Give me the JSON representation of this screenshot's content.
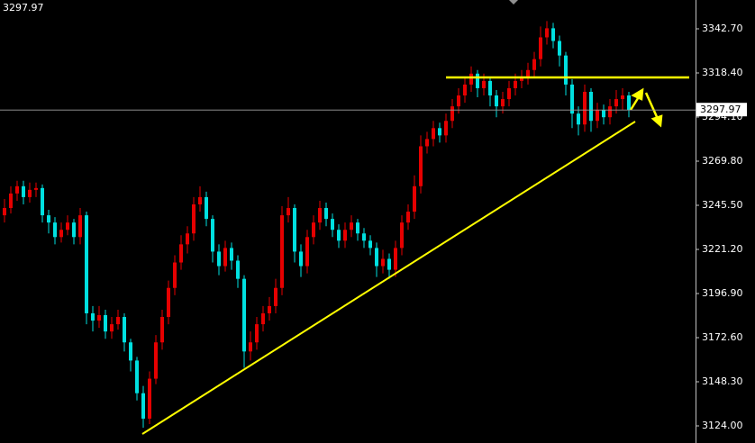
{
  "chart_data": {
    "type": "candlestick",
    "last_price": 3297.97,
    "up_color": "#e60000",
    "down_color": "#00e0e0",
    "ylim": [
      3114.58,
      3358.57
    ],
    "yticks": [
      {
        "value": 3124,
        "label": "3124.00"
      },
      {
        "value": 3148.3,
        "label": "3148.30"
      },
      {
        "value": 3172.6,
        "label": "3172.60"
      },
      {
        "value": 3196.9,
        "label": "3196.90"
      },
      {
        "value": 3221.2,
        "label": "3221.20"
      },
      {
        "value": 3245.5,
        "label": "3245.50"
      },
      {
        "value": 3269.8,
        "label": "3269.80"
      },
      {
        "value": 3294.1,
        "label": "3294.10"
      },
      {
        "value": 3318.4,
        "label": "3318.40"
      },
      {
        "value": 3342.7,
        "label": "3342.70"
      }
    ],
    "open": [
      3240,
      3244,
      3252,
      3256,
      3250,
      3254,
      3255,
      3240,
      3236,
      3228,
      3232,
      3236,
      3228,
      3240,
      3186,
      3182,
      3185,
      3176,
      3180,
      3184,
      3170,
      3160,
      3142,
      3128,
      3150,
      3170,
      3184,
      3200,
      3214,
      3224,
      3230,
      3246,
      3250,
      3238,
      3220,
      3212,
      3222,
      3215,
      3205,
      3165,
      3170,
      3180,
      3186,
      3190,
      3200,
      3240,
      3244,
      3220,
      3212,
      3228,
      3236,
      3244,
      3238,
      3232,
      3226,
      3232,
      3236,
      3230,
      3226,
      3222,
      3212,
      3216,
      3210,
      3222,
      3236,
      3242,
      3256,
      3278,
      3282,
      3288,
      3284,
      3292,
      3300,
      3306,
      3312,
      3318,
      3310,
      3314,
      3306,
      3300,
      3304,
      3310,
      3314,
      3316,
      3320,
      3326,
      3338,
      3343,
      3336,
      3328,
      3312,
      3296,
      3290,
      3308,
      3292,
      3298,
      3294,
      3300,
      3304,
      3306
    ],
    "high": [
      3249,
      3256,
      3259,
      3259,
      3258,
      3258,
      3257,
      3243,
      3239,
      3236,
      3240,
      3238,
      3244,
      3242,
      3190,
      3190,
      3188,
      3184,
      3188,
      3186,
      3172,
      3162,
      3146,
      3154,
      3174,
      3188,
      3204,
      3218,
      3229,
      3234,
      3250,
      3256,
      3253,
      3240,
      3224,
      3226,
      3225,
      3218,
      3207,
      3176,
      3184,
      3190,
      3195,
      3205,
      3245,
      3250,
      3246,
      3224,
      3232,
      3240,
      3248,
      3247,
      3241,
      3235,
      3236,
      3240,
      3238,
      3233,
      3229,
      3225,
      3221,
      3219,
      3226,
      3240,
      3246,
      3262,
      3284,
      3286,
      3292,
      3291,
      3296,
      3304,
      3310,
      3316,
      3322,
      3320,
      3318,
      3316,
      3309,
      3308,
      3314,
      3318,
      3320,
      3324,
      3330,
      3344,
      3347,
      3346,
      3339,
      3330,
      3315,
      3300,
      3312,
      3310,
      3302,
      3301,
      3304,
      3309,
      3310,
      3308
    ],
    "low": [
      3236,
      3241,
      3248,
      3246,
      3247,
      3250,
      3236,
      3230,
      3224,
      3225,
      3229,
      3224,
      3224,
      3180,
      3176,
      3178,
      3172,
      3172,
      3177,
      3165,
      3154,
      3138,
      3123,
      3125,
      3147,
      3166,
      3180,
      3196,
      3210,
      3219,
      3226,
      3242,
      3234,
      3214,
      3207,
      3209,
      3210,
      3200,
      3156,
      3160,
      3166,
      3176,
      3182,
      3186,
      3196,
      3236,
      3214,
      3206,
      3208,
      3224,
      3232,
      3234,
      3228,
      3222,
      3222,
      3228,
      3226,
      3222,
      3218,
      3206,
      3208,
      3205,
      3206,
      3218,
      3232,
      3238,
      3252,
      3274,
      3278,
      3280,
      3280,
      3288,
      3296,
      3302,
      3308,
      3305,
      3306,
      3300,
      3294,
      3296,
      3300,
      3306,
      3310,
      3312,
      3316,
      3322,
      3334,
      3332,
      3322,
      3306,
      3288,
      3284,
      3286,
      3286,
      3288,
      3290,
      3290,
      3296,
      3298,
      3294
    ],
    "close": [
      3244,
      3252,
      3256,
      3250,
      3254,
      3255,
      3240,
      3236,
      3228,
      3232,
      3236,
      3228,
      3240,
      3186,
      3182,
      3185,
      3176,
      3180,
      3184,
      3170,
      3160,
      3142,
      3128,
      3150,
      3170,
      3184,
      3200,
      3214,
      3224,
      3230,
      3246,
      3250,
      3238,
      3220,
      3212,
      3222,
      3215,
      3205,
      3165,
      3170,
      3180,
      3186,
      3190,
      3200,
      3240,
      3244,
      3220,
      3212,
      3228,
      3236,
      3244,
      3238,
      3232,
      3226,
      3232,
      3236,
      3230,
      3226,
      3222,
      3212,
      3216,
      3210,
      3222,
      3236,
      3242,
      3256,
      3278,
      3282,
      3288,
      3284,
      3292,
      3300,
      3306,
      3312,
      3318,
      3310,
      3314,
      3306,
      3300,
      3304,
      3310,
      3314,
      3316,
      3320,
      3326,
      3338,
      3343,
      3336,
      3328,
      3312,
      3296,
      3290,
      3308,
      3292,
      3298,
      3294,
      3300,
      3304,
      3306,
      3297.97
    ]
  }
}
